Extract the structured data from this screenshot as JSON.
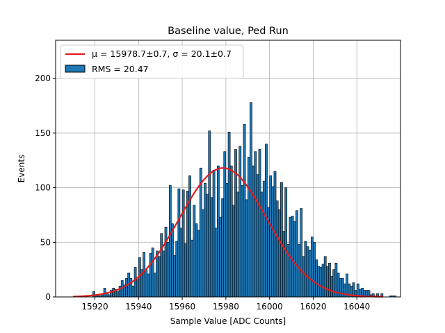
{
  "chart_data": {
    "type": "bar",
    "title": "Baseline value, Ped Run",
    "xlabel": "Sample Value [ADC Counts]",
    "ylabel": "Events",
    "xlim": [
      15902,
      16060
    ],
    "ylim": [
      0,
      235
    ],
    "xticks": [
      15920,
      15940,
      15960,
      15980,
      16000,
      16020,
      16040
    ],
    "yticks": [
      0,
      50,
      100,
      150,
      200
    ],
    "grid": true,
    "legend_position": "top-left",
    "colors": {
      "bar_fill": "#1f77b4",
      "bar_edge": "#000000",
      "fit_line": "#e31a1c",
      "grid": "#b0b0b0"
    },
    "legend": {
      "fit_label": "μ = 15978.7±0.7, σ = 20.1±0.7",
      "hist_label": "RMS = 20.47"
    },
    "histogram": {
      "name": "RMS = 20.47",
      "bin_start": 15913,
      "bin_width": 1,
      "values": [
        1,
        0,
        0,
        0,
        0,
        0,
        5,
        2,
        1,
        1,
        2,
        8,
        4,
        2,
        6,
        8,
        7,
        5,
        10,
        15,
        11,
        17,
        22,
        17,
        10,
        27,
        16,
        36,
        25,
        41,
        25,
        21,
        40,
        45,
        22,
        42,
        37,
        58,
        42,
        64,
        50,
        102,
        67,
        38,
        51,
        99,
        63,
        98,
        49,
        97,
        111,
        52,
        84,
        67,
        61,
        118,
        80,
        104,
        94,
        152,
        91,
        116,
        63,
        120,
        73,
        90,
        133,
        104,
        151,
        120,
        84,
        135,
        96,
        138,
        102,
        158,
        89,
        128,
        178,
        120,
        133,
        112,
        135,
        96,
        106,
        140,
        82,
        111,
        101,
        115,
        88,
        80,
        105,
        60,
        100,
        48,
        73,
        74,
        69,
        79,
        48,
        81,
        37,
        51,
        46,
        43,
        55,
        50,
        34,
        28,
        27,
        30,
        37,
        28,
        31,
        19,
        25,
        31,
        22,
        17,
        17,
        12,
        21,
        12,
        10,
        13,
        6,
        12,
        7,
        8,
        6,
        6,
        6,
        2,
        3,
        1,
        3,
        0,
        3,
        0,
        0,
        0,
        1,
        1,
        1
      ]
    },
    "fit": {
      "name": "μ = 15978.7±0.7, σ = 20.1±0.7",
      "mu": 15978.7,
      "sigma": 20.1,
      "amplitude": 118,
      "x_range": [
        15910,
        16052
      ]
    }
  }
}
